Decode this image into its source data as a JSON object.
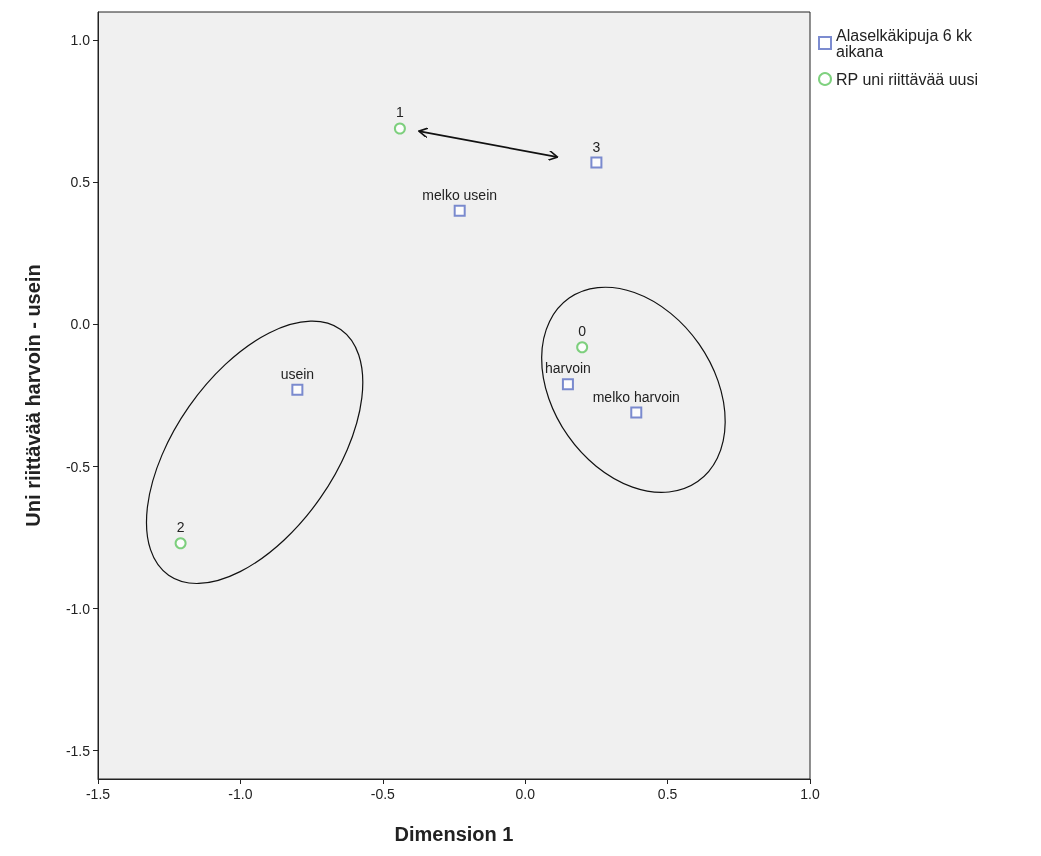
{
  "chart_data": {
    "type": "scatter",
    "xlabel": "Dimension 1",
    "ylabel": "Uni riittävää harvoin - usein",
    "xlim": [
      -1.5,
      1.0
    ],
    "ylim": [
      -1.6,
      1.1
    ],
    "xticks": [
      {
        "value": -1.5,
        "label": "-1.5"
      },
      {
        "value": -1,
        "label": "-1.0"
      },
      {
        "value": -0.5,
        "label": "-0.5"
      },
      {
        "value": 0,
        "label": "0.0"
      },
      {
        "value": 0.5,
        "label": "0.5"
      },
      {
        "value": 1,
        "label": "1.0"
      }
    ],
    "yticks": [
      {
        "value": -1.5,
        "label": "-1.5"
      },
      {
        "value": -1,
        "label": "-1.0"
      },
      {
        "value": -0.5,
        "label": "-0.5"
      },
      {
        "value": 0,
        "label": "0.0"
      },
      {
        "value": 0.5,
        "label": "0.5"
      },
      {
        "value": 1,
        "label": "1.0"
      }
    ],
    "grid": false,
    "legend": "top right",
    "series": [
      {
        "name": "Alaselkäkipuja 6 kk aikana",
        "color": "#5b6fc4",
        "marker": "square",
        "x": [
          0.25,
          -0.23,
          0.15,
          0.39,
          -0.8
        ],
        "values": [
          0.57,
          0.4,
          -0.21,
          -0.31,
          -0.23
        ]
      },
      {
        "name": "RP uni riittävää uusi",
        "color": "#5fc65f",
        "marker": "circle",
        "x": [
          -0.44,
          0.2,
          -1.21
        ],
        "values": [
          0.69,
          -0.08,
          -0.77
        ]
      }
    ],
    "annotations": [
      {
        "text": "3",
        "x": 0.25,
        "y": 0.57
      },
      {
        "text": "melko usein",
        "x": -0.23,
        "y": 0.4
      },
      {
        "text": "harvoin",
        "x": 0.15,
        "y": -0.21
      },
      {
        "text": "melko harvoin",
        "x": 0.39,
        "y": -0.31
      },
      {
        "text": "usein",
        "x": -0.8,
        "y": -0.23
      },
      {
        "text": "1",
        "x": -0.44,
        "y": 0.69
      },
      {
        "text": "0",
        "x": 0.2,
        "y": -0.08
      },
      {
        "text": "2",
        "x": -1.21,
        "y": -0.77
      }
    ]
  }
}
